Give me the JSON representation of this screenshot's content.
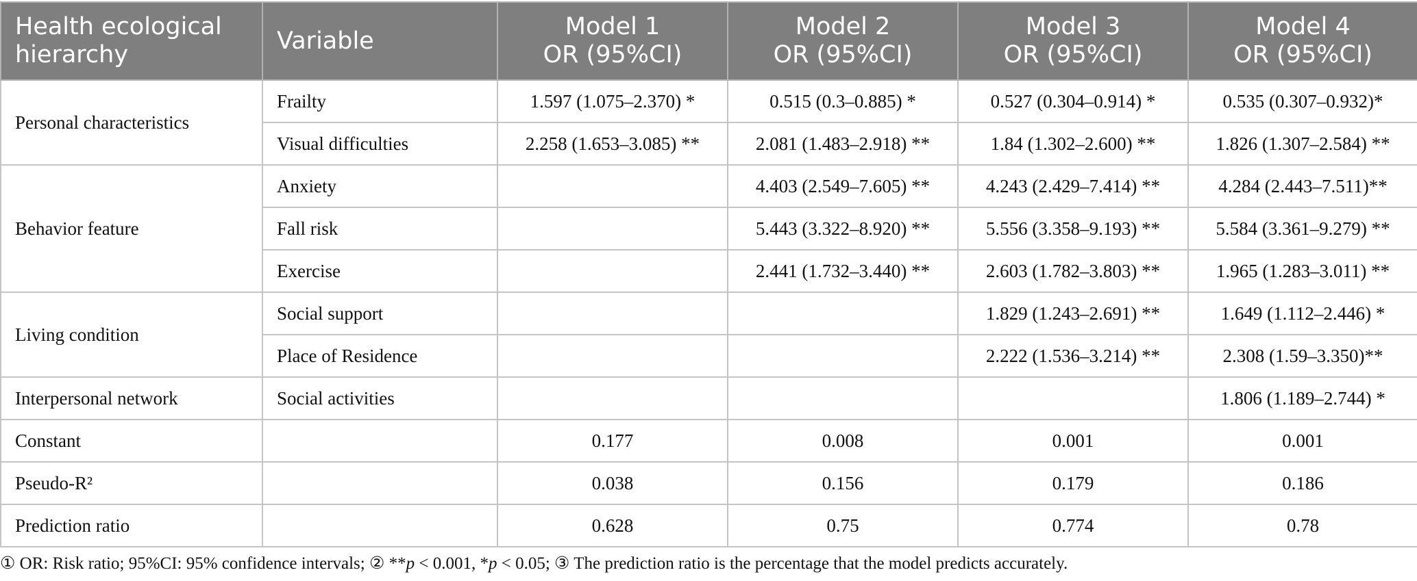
{
  "header": {
    "hierarchy": [
      "Health ecological",
      "hierarchy"
    ],
    "variable": "Variable",
    "models": [
      {
        "name": "Model 1",
        "metric": "OR (95%CI)"
      },
      {
        "name": "Model 2",
        "metric": "OR (95%CI)"
      },
      {
        "name": "Model 3",
        "metric": "OR (95%CI)"
      },
      {
        "name": "Model 4",
        "metric": "OR (95%CI)"
      }
    ]
  },
  "groups": [
    {
      "label": "Personal characteristics",
      "rows": [
        {
          "variable": "Frailty",
          "values": [
            "1.597 (1.075–2.370) *",
            "0.515 (0.3–0.885) *",
            "0.527 (0.304–0.914) *",
            "0.535 (0.307–0.932)*"
          ]
        },
        {
          "variable": "Visual difficulties",
          "values": [
            "2.258 (1.653–3.085) **",
            "2.081 (1.483–2.918) **",
            "1.84 (1.302–2.600) **",
            "1.826 (1.307–2.584) **"
          ]
        }
      ]
    },
    {
      "label": "Behavior feature",
      "rows": [
        {
          "variable": "Anxiety",
          "values": [
            "",
            "4.403 (2.549–7.605) **",
            "4.243 (2.429–7.414) **",
            "4.284 (2.443–7.511)**"
          ]
        },
        {
          "variable": "Fall risk",
          "values": [
            "",
            "5.443 (3.322–8.920) **",
            "5.556 (3.358–9.193) **",
            "5.584 (3.361–9.279) **"
          ]
        },
        {
          "variable": "Exercise",
          "values": [
            "",
            "2.441 (1.732–3.440) **",
            "2.603 (1.782–3.803) **",
            "1.965 (1.283–3.011) **"
          ]
        }
      ]
    },
    {
      "label": "Living condition",
      "rows": [
        {
          "variable": "Social support",
          "values": [
            "",
            "",
            "1.829 (1.243–2.691) **",
            "1.649 (1.112–2.446) *"
          ]
        },
        {
          "variable": "Place of Residence",
          "values": [
            "",
            "",
            "2.222 (1.536–3.214) **",
            "2.308 (1.59–3.350)**"
          ]
        }
      ]
    },
    {
      "label": "Interpersonal network",
      "rows": [
        {
          "variable": "Social activities",
          "values": [
            "",
            "",
            "",
            "1.806 (1.189–2.744) *"
          ]
        }
      ]
    }
  ],
  "stats": [
    {
      "label": "Constant",
      "values": [
        "0.177",
        "0.008",
        "0.001",
        "0.001"
      ]
    },
    {
      "label": "Pseudo-R²",
      "values": [
        "0.038",
        "0.156",
        "0.179",
        "0.186"
      ]
    },
    {
      "label": "Prediction ratio",
      "values": [
        "0.628",
        "0.75",
        "0.774",
        "0.78"
      ]
    }
  ],
  "footnote": {
    "n1": "① OR: Risk ratio; 95%CI: 95% confidence intervals; ② **",
    "p1": "p",
    "n2": " < 0.001, *",
    "p2": "p",
    "n3": " < 0.05; ③ The prediction ratio is the percentage that the model predicts accurately."
  }
}
